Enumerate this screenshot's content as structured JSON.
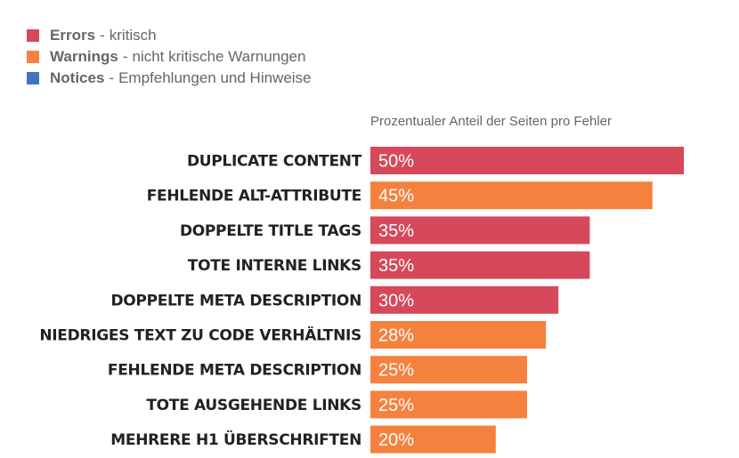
{
  "legend": [
    {
      "name": "Errors",
      "description": "kritisch",
      "color": "#d6485a"
    },
    {
      "name": "Warnings",
      "description": "nicht kritische Warnungen",
      "color": "#f5813f"
    },
    {
      "name": "Notices",
      "description": "Empfehlungen und Hinweise",
      "color": "#4275c0"
    }
  ],
  "chart_data": {
    "type": "bar",
    "orientation": "horizontal",
    "title": "Prozentualer Anteil der Seiten pro Fehler",
    "categories": [
      "Duplicate Content",
      "Fehlende Alt-Attribute",
      "Doppelte Title Tags",
      "Tote Interne Links",
      "Doppelte Meta Description",
      "Niedriges Text zu Code Verhältnis",
      "Fehlende Meta Description",
      "Tote ausgehende Links",
      "Mehrere H1 Überschriften"
    ],
    "values": [
      50,
      45,
      35,
      35,
      30,
      28,
      25,
      25,
      20
    ],
    "value_labels": [
      "50%",
      "45%",
      "35%",
      "35%",
      "30%",
      "28%",
      "25%",
      "25%",
      "20%"
    ],
    "severity": [
      "Errors",
      "Warnings",
      "Errors",
      "Errors",
      "Errors",
      "Warnings",
      "Warnings",
      "Warnings",
      "Warnings"
    ],
    "xlim": [
      0,
      50
    ],
    "grid": false,
    "legend_position": "top-left"
  }
}
